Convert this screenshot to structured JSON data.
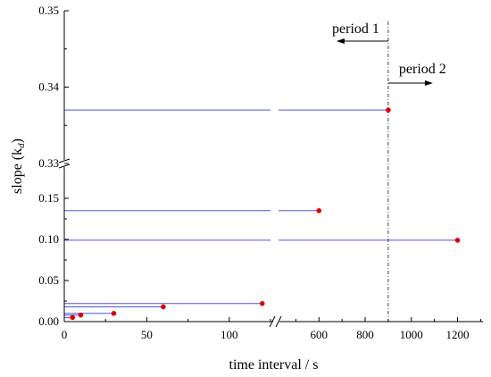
{
  "chart_data": {
    "type": "scatter",
    "xlabel": "time interval / s",
    "ylabel_main": "slope (k",
    "ylabel_sub": "d",
    "ylabel_end": ")",
    "x_axis": {
      "break": true,
      "segments": [
        {
          "range": [
            0,
            125
          ],
          "ticks": [
            0,
            50,
            100
          ],
          "tick_labels": [
            "0",
            "50",
            "100"
          ]
        },
        {
          "range": [
            425,
            1310
          ],
          "ticks": [
            600,
            800,
            1000,
            1200
          ],
          "tick_labels": [
            "600",
            "800",
            "1000",
            "1200"
          ]
        }
      ]
    },
    "y_axis": {
      "break": true,
      "segments": [
        {
          "range": [
            0,
            0.175
          ],
          "ticks": [
            0.0,
            0.05,
            0.1,
            0.15
          ],
          "tick_labels": [
            "0.00",
            "0.05",
            "0.10",
            "0.15"
          ]
        },
        {
          "range": [
            0.33,
            0.35
          ],
          "ticks": [
            0.33,
            0.34,
            0.35
          ],
          "tick_labels": [
            "0.33",
            "0.34",
            "0.35"
          ]
        }
      ]
    },
    "points": [
      {
        "x": 5,
        "y": 0.005
      },
      {
        "x": 10,
        "y": 0.008
      },
      {
        "x": 30,
        "y": 0.01
      },
      {
        "x": 60,
        "y": 0.018
      },
      {
        "x": 120,
        "y": 0.022
      },
      {
        "x": 600,
        "y": 0.135
      },
      {
        "x": 900,
        "y": 0.337
      },
      {
        "x": 1200,
        "y": 0.099
      }
    ],
    "vline": {
      "x": 900
    },
    "annotations": [
      {
        "text": "period 1",
        "direction": "left"
      },
      {
        "text": "period 2",
        "direction": "right"
      }
    ],
    "colors": {
      "points": "#e00000",
      "lines": "#5050e0",
      "axes": "#000000",
      "vline": "#444444"
    }
  }
}
